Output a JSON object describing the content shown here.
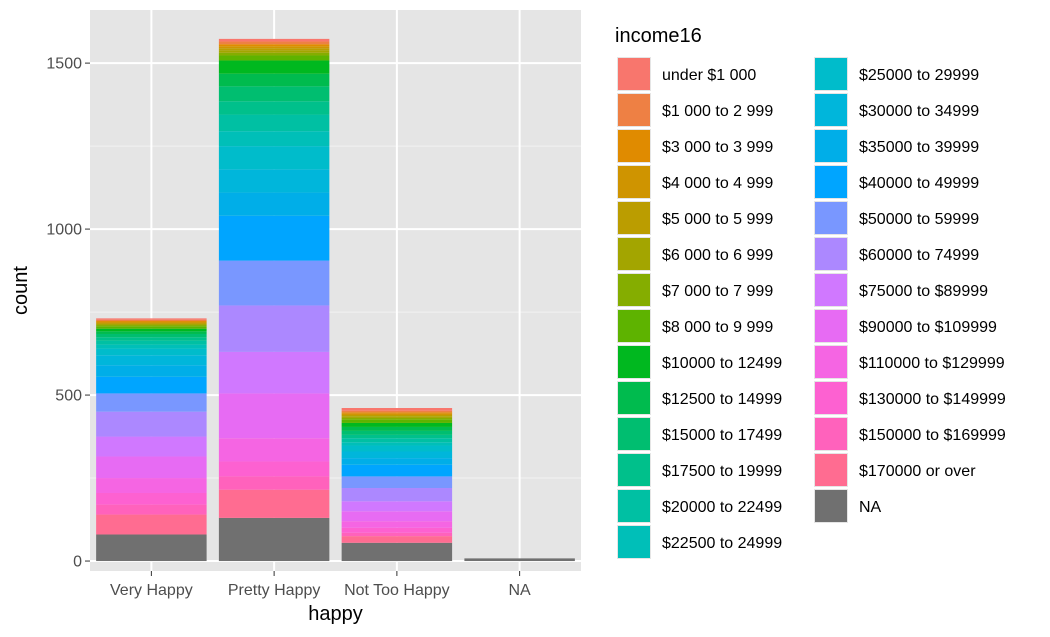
{
  "chart_data": {
    "type": "bar",
    "stacked": true,
    "xlabel": "happy",
    "ylabel": "count",
    "ylim": [
      -30,
      1660
    ],
    "y_ticks": [
      0,
      500,
      1000,
      1500
    ],
    "categories": [
      "Very Happy",
      "Pretty Happy",
      "Not Too Happy",
      "NA"
    ],
    "grid": true,
    "legend": {
      "title": "income16",
      "position": "right",
      "columns": 2
    },
    "series": [
      {
        "name": "under $1 000",
        "color": "#F8766D",
        "values": [
          4,
          8,
          8,
          0
        ]
      },
      {
        "name": "$1 000 to 2 999",
        "color": "#EE8044",
        "values": [
          4,
          8,
          5,
          0
        ]
      },
      {
        "name": "$3 000 to 3 999",
        "color": "#E08B00",
        "values": [
          3,
          6,
          4,
          0
        ]
      },
      {
        "name": "$4 000 to 4 999",
        "color": "#CF9400",
        "values": [
          3,
          6,
          4,
          0
        ]
      },
      {
        "name": "$5 000 to 5 999",
        "color": "#BB9D00",
        "values": [
          3,
          6,
          4,
          0
        ]
      },
      {
        "name": "$6 000 to 6 999",
        "color": "#A3A500",
        "values": [
          3,
          8,
          5,
          0
        ]
      },
      {
        "name": "$7 000 to 7 999",
        "color": "#85AD00",
        "values": [
          4,
          8,
          5,
          0
        ]
      },
      {
        "name": "$8 000 to 9 999",
        "color": "#5EB300",
        "values": [
          7,
          15,
          10,
          0
        ]
      },
      {
        "name": "$10000 to 12499",
        "color": "#00B81F",
        "values": [
          8,
          40,
          12,
          0
        ]
      },
      {
        "name": "$12500 to 14999",
        "color": "#00BB4E",
        "values": [
          8,
          38,
          12,
          0
        ]
      },
      {
        "name": "$15000 to 17499",
        "color": "#00BE70",
        "values": [
          10,
          45,
          12,
          0
        ]
      },
      {
        "name": "$17500 to 19999",
        "color": "#00C08B",
        "values": [
          10,
          40,
          10,
          0
        ]
      },
      {
        "name": "$20000 to 22499",
        "color": "#00C0A3",
        "values": [
          12,
          50,
          12,
          0
        ]
      },
      {
        "name": "$22500 to 24999",
        "color": "#00BFB8",
        "values": [
          12,
          45,
          10,
          0
        ]
      },
      {
        "name": "$25000 to 29999",
        "color": "#00BCCB",
        "values": [
          20,
          70,
          18,
          0
        ]
      },
      {
        "name": "$30000 to 34999",
        "color": "#00B6DB",
        "values": [
          30,
          70,
          20,
          0
        ]
      },
      {
        "name": "$35000 to 39999",
        "color": "#00AEE8",
        "values": [
          35,
          70,
          20,
          0
        ]
      },
      {
        "name": "$40000 to 49999",
        "color": "#00A5FF",
        "values": [
          50,
          135,
          35,
          0
        ]
      },
      {
        "name": "$50000 to 59999",
        "color": "#7997FF",
        "values": [
          55,
          135,
          35,
          0
        ]
      },
      {
        "name": "$60000 to 74999",
        "color": "#AC88FF",
        "values": [
          75,
          140,
          40,
          0
        ]
      },
      {
        "name": "$75000 to $89999",
        "color": "#D078FF",
        "values": [
          60,
          125,
          30,
          0
        ]
      },
      {
        "name": "$90000 to $109999",
        "color": "#E76BF3",
        "values": [
          65,
          135,
          30,
          0
        ]
      },
      {
        "name": "$110000 to $129999",
        "color": "#F565E3",
        "values": [
          45,
          70,
          20,
          0
        ]
      },
      {
        "name": "$130000 to $149999",
        "color": "#FD61D1",
        "values": [
          35,
          45,
          15,
          0
        ]
      },
      {
        "name": "$150000 to $169999",
        "color": "#FF62BC",
        "values": [
          30,
          40,
          10,
          0
        ]
      },
      {
        "name": "$170000 or over",
        "color": "#FF6C91",
        "values": [
          60,
          85,
          20,
          0
        ]
      },
      {
        "name": "NA",
        "color": "#707070",
        "values": [
          80,
          130,
          55,
          8
        ]
      }
    ]
  },
  "colors": {
    "panel_background": "#e5e5e5",
    "grid_major": "#ffffff",
    "grid_minor": "#f2f2f2",
    "tick_mark": "#333333",
    "text": "#4d4d4d"
  }
}
